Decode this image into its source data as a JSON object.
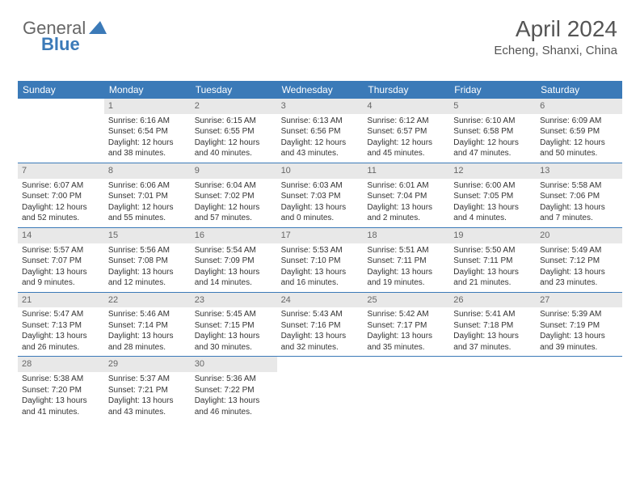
{
  "logo": {
    "text1": "General",
    "text2": "Blue"
  },
  "header": {
    "month_title": "April 2024",
    "location": "Echeng, Shanxi, China"
  },
  "colors": {
    "header_bg": "#3b7ab8",
    "header_text": "#ffffff",
    "daynum_bg": "#e8e8e8",
    "daynum_text": "#666666",
    "body_text": "#333333",
    "rule": "#3b7ab8",
    "page_bg": "#ffffff"
  },
  "typography": {
    "title_fontsize": 28,
    "location_fontsize": 15,
    "dayheader_fontsize": 12,
    "cell_fontsize": 10
  },
  "day_names": [
    "Sunday",
    "Monday",
    "Tuesday",
    "Wednesday",
    "Thursday",
    "Friday",
    "Saturday"
  ],
  "weeks": [
    [
      null,
      {
        "n": "1",
        "sr": "Sunrise: 6:16 AM",
        "ss": "Sunset: 6:54 PM",
        "d1": "Daylight: 12 hours",
        "d2": "and 38 minutes."
      },
      {
        "n": "2",
        "sr": "Sunrise: 6:15 AM",
        "ss": "Sunset: 6:55 PM",
        "d1": "Daylight: 12 hours",
        "d2": "and 40 minutes."
      },
      {
        "n": "3",
        "sr": "Sunrise: 6:13 AM",
        "ss": "Sunset: 6:56 PM",
        "d1": "Daylight: 12 hours",
        "d2": "and 43 minutes."
      },
      {
        "n": "4",
        "sr": "Sunrise: 6:12 AM",
        "ss": "Sunset: 6:57 PM",
        "d1": "Daylight: 12 hours",
        "d2": "and 45 minutes."
      },
      {
        "n": "5",
        "sr": "Sunrise: 6:10 AM",
        "ss": "Sunset: 6:58 PM",
        "d1": "Daylight: 12 hours",
        "d2": "and 47 minutes."
      },
      {
        "n": "6",
        "sr": "Sunrise: 6:09 AM",
        "ss": "Sunset: 6:59 PM",
        "d1": "Daylight: 12 hours",
        "d2": "and 50 minutes."
      }
    ],
    [
      {
        "n": "7",
        "sr": "Sunrise: 6:07 AM",
        "ss": "Sunset: 7:00 PM",
        "d1": "Daylight: 12 hours",
        "d2": "and 52 minutes."
      },
      {
        "n": "8",
        "sr": "Sunrise: 6:06 AM",
        "ss": "Sunset: 7:01 PM",
        "d1": "Daylight: 12 hours",
        "d2": "and 55 minutes."
      },
      {
        "n": "9",
        "sr": "Sunrise: 6:04 AM",
        "ss": "Sunset: 7:02 PM",
        "d1": "Daylight: 12 hours",
        "d2": "and 57 minutes."
      },
      {
        "n": "10",
        "sr": "Sunrise: 6:03 AM",
        "ss": "Sunset: 7:03 PM",
        "d1": "Daylight: 13 hours",
        "d2": "and 0 minutes."
      },
      {
        "n": "11",
        "sr": "Sunrise: 6:01 AM",
        "ss": "Sunset: 7:04 PM",
        "d1": "Daylight: 13 hours",
        "d2": "and 2 minutes."
      },
      {
        "n": "12",
        "sr": "Sunrise: 6:00 AM",
        "ss": "Sunset: 7:05 PM",
        "d1": "Daylight: 13 hours",
        "d2": "and 4 minutes."
      },
      {
        "n": "13",
        "sr": "Sunrise: 5:58 AM",
        "ss": "Sunset: 7:06 PM",
        "d1": "Daylight: 13 hours",
        "d2": "and 7 minutes."
      }
    ],
    [
      {
        "n": "14",
        "sr": "Sunrise: 5:57 AM",
        "ss": "Sunset: 7:07 PM",
        "d1": "Daylight: 13 hours",
        "d2": "and 9 minutes."
      },
      {
        "n": "15",
        "sr": "Sunrise: 5:56 AM",
        "ss": "Sunset: 7:08 PM",
        "d1": "Daylight: 13 hours",
        "d2": "and 12 minutes."
      },
      {
        "n": "16",
        "sr": "Sunrise: 5:54 AM",
        "ss": "Sunset: 7:09 PM",
        "d1": "Daylight: 13 hours",
        "d2": "and 14 minutes."
      },
      {
        "n": "17",
        "sr": "Sunrise: 5:53 AM",
        "ss": "Sunset: 7:10 PM",
        "d1": "Daylight: 13 hours",
        "d2": "and 16 minutes."
      },
      {
        "n": "18",
        "sr": "Sunrise: 5:51 AM",
        "ss": "Sunset: 7:11 PM",
        "d1": "Daylight: 13 hours",
        "d2": "and 19 minutes."
      },
      {
        "n": "19",
        "sr": "Sunrise: 5:50 AM",
        "ss": "Sunset: 7:11 PM",
        "d1": "Daylight: 13 hours",
        "d2": "and 21 minutes."
      },
      {
        "n": "20",
        "sr": "Sunrise: 5:49 AM",
        "ss": "Sunset: 7:12 PM",
        "d1": "Daylight: 13 hours",
        "d2": "and 23 minutes."
      }
    ],
    [
      {
        "n": "21",
        "sr": "Sunrise: 5:47 AM",
        "ss": "Sunset: 7:13 PM",
        "d1": "Daylight: 13 hours",
        "d2": "and 26 minutes."
      },
      {
        "n": "22",
        "sr": "Sunrise: 5:46 AM",
        "ss": "Sunset: 7:14 PM",
        "d1": "Daylight: 13 hours",
        "d2": "and 28 minutes."
      },
      {
        "n": "23",
        "sr": "Sunrise: 5:45 AM",
        "ss": "Sunset: 7:15 PM",
        "d1": "Daylight: 13 hours",
        "d2": "and 30 minutes."
      },
      {
        "n": "24",
        "sr": "Sunrise: 5:43 AM",
        "ss": "Sunset: 7:16 PM",
        "d1": "Daylight: 13 hours",
        "d2": "and 32 minutes."
      },
      {
        "n": "25",
        "sr": "Sunrise: 5:42 AM",
        "ss": "Sunset: 7:17 PM",
        "d1": "Daylight: 13 hours",
        "d2": "and 35 minutes."
      },
      {
        "n": "26",
        "sr": "Sunrise: 5:41 AM",
        "ss": "Sunset: 7:18 PM",
        "d1": "Daylight: 13 hours",
        "d2": "and 37 minutes."
      },
      {
        "n": "27",
        "sr": "Sunrise: 5:39 AM",
        "ss": "Sunset: 7:19 PM",
        "d1": "Daylight: 13 hours",
        "d2": "and 39 minutes."
      }
    ],
    [
      {
        "n": "28",
        "sr": "Sunrise: 5:38 AM",
        "ss": "Sunset: 7:20 PM",
        "d1": "Daylight: 13 hours",
        "d2": "and 41 minutes."
      },
      {
        "n": "29",
        "sr": "Sunrise: 5:37 AM",
        "ss": "Sunset: 7:21 PM",
        "d1": "Daylight: 13 hours",
        "d2": "and 43 minutes."
      },
      {
        "n": "30",
        "sr": "Sunrise: 5:36 AM",
        "ss": "Sunset: 7:22 PM",
        "d1": "Daylight: 13 hours",
        "d2": "and 46 minutes."
      },
      null,
      null,
      null,
      null
    ]
  ]
}
